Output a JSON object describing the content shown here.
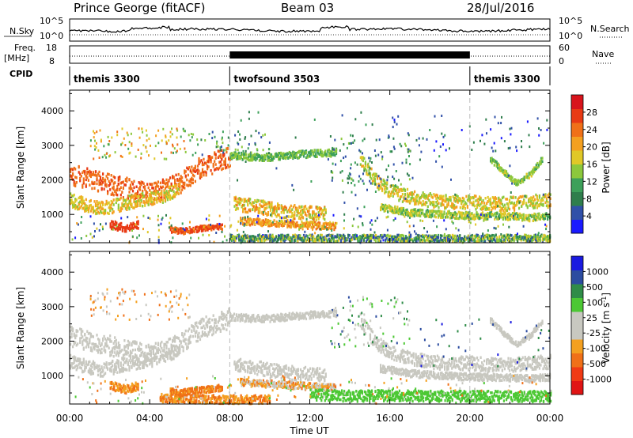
{
  "header": {
    "station": "Prince George (fitACF)",
    "beam": "Beam 03",
    "date": "28/Jul/2016"
  },
  "top_panels": {
    "nsky_label": "N.Sky",
    "nsky_ticks": [
      "10^5",
      "10^0"
    ],
    "nsearch_label": "N.Search",
    "nsearch_ticks": [
      "10^5",
      "10^0"
    ],
    "freq_label": "Freq.",
    "freq_unit": "[MHz]",
    "freq_ticks": [
      "18",
      "8"
    ],
    "nave_label": "Nave",
    "nave_ticks": [
      "60",
      "0"
    ],
    "cpid_label": "CPID",
    "cpid_segments": [
      {
        "label": "themis 3300",
        "start_h": 0,
        "end_h": 8
      },
      {
        "label": "twofsound 3503",
        "start_h": 8,
        "end_h": 20
      },
      {
        "label": "themis 3300",
        "start_h": 20,
        "end_h": 24
      }
    ]
  },
  "chart_data": [
    {
      "type": "heatmap",
      "panel": "power",
      "ylabel": "Slant Range [km]",
      "ylim": [
        180,
        4600
      ],
      "yticks": [
        1000,
        2000,
        3000,
        4000
      ],
      "xlim": [
        0,
        24
      ],
      "colorbar": {
        "label": "Power [dB]",
        "ticks": [
          "4",
          "8",
          "12",
          "16",
          "20",
          "24",
          "28"
        ],
        "colors": [
          "#1a1aff",
          "#3050a8",
          "#2f7e4c",
          "#3da05a",
          "#8cc83c",
          "#e0c828",
          "#f4a020",
          "#f07018",
          "#e83a14",
          "#d8141c"
        ]
      },
      "bands": [
        {
          "t": [
            0,
            2,
            4,
            5.5,
            6.5,
            8
          ],
          "r": [
            2150,
            1850,
            1600,
            1900,
            2350,
            2650
          ],
          "w": 300,
          "c": [
            0.7,
            0.85
          ]
        },
        {
          "t": [
            0,
            1.5,
            3,
            4.5,
            5.5
          ],
          "r": [
            1400,
            1150,
            1350,
            1500,
            1750
          ],
          "w": 200,
          "c": [
            0.45,
            0.7
          ]
        },
        {
          "t": [
            2,
            2.8,
            3.4
          ],
          "r": [
            700,
            600,
            700
          ],
          "w": 120,
          "c": [
            0.8,
            0.9
          ]
        },
        {
          "t": [
            5,
            5.6,
            6.2,
            6.9,
            7.6
          ],
          "r": [
            550,
            500,
            560,
            600,
            640
          ],
          "w": 80,
          "c": [
            0.75,
            0.85
          ]
        },
        {
          "t": [
            8,
            9,
            10,
            11,
            12,
            13.3
          ],
          "r": [
            2700,
            2650,
            2650,
            2700,
            2750,
            2800
          ],
          "w": 100,
          "c": [
            0.3,
            0.5
          ]
        },
        {
          "t": [
            8.2,
            9.5,
            10.5,
            11.5,
            12.8
          ],
          "r": [
            1300,
            1200,
            1100,
            1050,
            1000
          ],
          "w": 200,
          "c": [
            0.45,
            0.75
          ]
        },
        {
          "t": [
            8.5,
            10,
            11.5,
            12.8,
            13.3
          ],
          "r": [
            800,
            750,
            700,
            650,
            650
          ],
          "w": 100,
          "c": [
            0.55,
            0.8
          ]
        },
        {
          "t": [
            14.5,
            15.2,
            16,
            17,
            18,
            19,
            20,
            21,
            22,
            23,
            24
          ],
          "r": [
            2600,
            2000,
            1650,
            1500,
            1400,
            1350,
            1350,
            1300,
            1300,
            1350,
            1400
          ],
          "w": 200,
          "c": [
            0.4,
            0.7
          ]
        },
        {
          "t": [
            15.5,
            17,
            18.5,
            20,
            21.5,
            23,
            24
          ],
          "r": [
            1200,
            1050,
            1000,
            950,
            950,
            900,
            950
          ],
          "w": 100,
          "c": [
            0.35,
            0.6
          ]
        },
        {
          "t": [
            21,
            21.7,
            22.3,
            23,
            23.6
          ],
          "r": [
            2600,
            2200,
            1900,
            2150,
            2600
          ],
          "w": 80,
          "c": [
            0.35,
            0.55
          ]
        },
        {
          "t": [
            8,
            12,
            16,
            20,
            24
          ],
          "r": [
            300,
            300,
            300,
            300,
            300
          ],
          "w": 100,
          "c": [
            0.1,
            0.6
          ]
        }
      ],
      "speckles": [
        {
          "t": [
            1,
            6
          ],
          "r": [
            2600,
            3500
          ],
          "n": 110,
          "c": [
            0.3,
            0.8
          ]
        },
        {
          "t": [
            6,
            10
          ],
          "r": [
            2700,
            3400
          ],
          "n": 60,
          "c": [
            0.15,
            0.5
          ]
        },
        {
          "t": [
            13,
            17
          ],
          "r": [
            1800,
            3300
          ],
          "n": 110,
          "c": [
            0.1,
            0.45
          ]
        },
        {
          "t": [
            0,
            24
          ],
          "r": [
            180,
            1000
          ],
          "n": 240,
          "c": [
            0.05,
            0.65
          ]
        },
        {
          "t": [
            8,
            24
          ],
          "r": [
            1000,
            4000
          ],
          "n": 70,
          "c": [
            0.1,
            0.4
          ]
        },
        {
          "t": [
            16,
            24
          ],
          "r": [
            2800,
            3900
          ],
          "n": 50,
          "c": [
            0.05,
            0.25
          ]
        }
      ]
    },
    {
      "type": "heatmap",
      "panel": "velocity",
      "ylabel": "Slant Range [km]",
      "xlabel": "Time UT",
      "ylim": [
        180,
        4600
      ],
      "yticks": [
        1000,
        2000,
        3000,
        4000
      ],
      "xlim": [
        0,
        24
      ],
      "xticks": [
        "00:00",
        "04:00",
        "08:00",
        "12:00",
        "16:00",
        "20:00",
        "00:00"
      ],
      "colorbar": {
        "label": "Velocity [m s",
        "label_sup": "-1",
        "label_end": "]",
        "ticks": [
          "1000",
          "500",
          "100",
          "25",
          "-25",
          "-100",
          "-500",
          "-1000"
        ],
        "colors": [
          "#e01414",
          "#f03a14",
          "#f07018",
          "#f4a020",
          "#c8c8c0",
          "#c8c8c0",
          "#4cc834",
          "#2f8c48",
          "#2c4ca0",
          "#1a1ae0"
        ]
      },
      "bands": [
        {
          "t": [
            0,
            2,
            4,
            5.5,
            6.5,
            8
          ],
          "r": [
            2150,
            1850,
            1600,
            1900,
            2350,
            2650
          ],
          "w": 300,
          "c": [
            0.44,
            0.56
          ]
        },
        {
          "t": [
            0,
            1.5,
            3,
            4.5,
            5.5
          ],
          "r": [
            1400,
            1150,
            1350,
            1500,
            1750
          ],
          "w": 200,
          "c": [
            0.44,
            0.56
          ]
        },
        {
          "t": [
            2,
            2.8,
            3.4
          ],
          "r": [
            700,
            600,
            700
          ],
          "w": 120,
          "c": [
            0.25,
            0.35
          ]
        },
        {
          "t": [
            5,
            5.6,
            6.2,
            6.9,
            7.6
          ],
          "r": [
            550,
            500,
            560,
            600,
            640
          ],
          "w": 90,
          "c": [
            0.2,
            0.35
          ]
        },
        {
          "t": [
            8,
            9,
            10,
            11,
            12,
            13.3
          ],
          "r": [
            2700,
            2650,
            2650,
            2700,
            2750,
            2800
          ],
          "w": 100,
          "c": [
            0.45,
            0.55
          ]
        },
        {
          "t": [
            8.2,
            9.5,
            10.5,
            11.5,
            12.8
          ],
          "r": [
            1300,
            1200,
            1100,
            1050,
            1000
          ],
          "w": 200,
          "c": [
            0.45,
            0.55
          ]
        },
        {
          "t": [
            8.5,
            10,
            11.5,
            12.8,
            13.3
          ],
          "r": [
            800,
            750,
            700,
            650,
            650
          ],
          "w": 100,
          "c": [
            0.25,
            0.55
          ]
        },
        {
          "t": [
            14.5,
            15.2,
            16,
            17,
            18,
            19,
            20,
            21,
            22,
            23,
            24
          ],
          "r": [
            2600,
            2000,
            1650,
            1500,
            1400,
            1350,
            1350,
            1300,
            1300,
            1350,
            1400
          ],
          "w": 200,
          "c": [
            0.44,
            0.58
          ]
        },
        {
          "t": [
            15.5,
            17,
            18.5,
            20,
            21.5,
            23,
            24
          ],
          "r": [
            1200,
            1050,
            1000,
            950,
            950,
            900,
            950
          ],
          "w": 100,
          "c": [
            0.44,
            0.56
          ]
        },
        {
          "t": [
            21,
            21.7,
            22.3,
            23,
            23.6
          ],
          "r": [
            2600,
            2200,
            1900,
            2150,
            2600
          ],
          "w": 80,
          "c": [
            0.44,
            0.56
          ]
        },
        {
          "t": [
            12,
            14,
            16,
            18,
            20,
            22,
            24
          ],
          "r": [
            450,
            400,
            420,
            400,
            400,
            380,
            400
          ],
          "w": 160,
          "c": [
            0.6,
            0.7
          ]
        },
        {
          "t": [
            4.5,
            6,
            8,
            10
          ],
          "r": [
            350,
            320,
            300,
            300
          ],
          "w": 120,
          "c": [
            0.25,
            0.35
          ]
        }
      ],
      "speckles": [
        {
          "t": [
            1,
            6
          ],
          "r": [
            2600,
            3500
          ],
          "n": 90,
          "c": [
            0.2,
            0.55
          ]
        },
        {
          "t": [
            13,
            17
          ],
          "r": [
            1800,
            3300
          ],
          "n": 90,
          "c": [
            0.45,
            0.85
          ]
        },
        {
          "t": [
            0,
            24
          ],
          "r": [
            180,
            1000
          ],
          "n": 180,
          "c": [
            0.2,
            0.7
          ]
        },
        {
          "t": [
            17,
            24
          ],
          "r": [
            1200,
            2800
          ],
          "n": 40,
          "c": [
            0.7,
            0.95
          ]
        }
      ]
    }
  ]
}
